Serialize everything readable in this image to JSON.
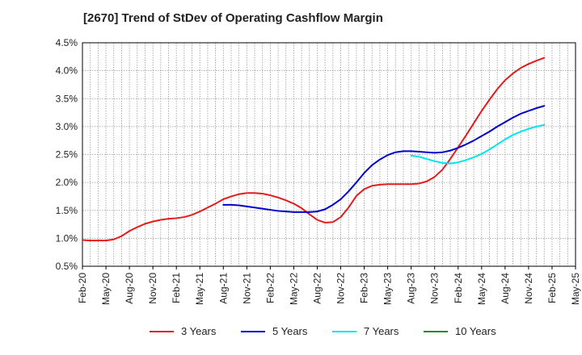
{
  "chart_data": {
    "type": "line",
    "title": "[2670]  Trend of StDev of Operating Cashflow Margin",
    "xlabel": "",
    "ylabel": "",
    "ylim": [
      0.5,
      4.5
    ],
    "yticks": [
      "0.5%",
      "1.0%",
      "1.5%",
      "2.0%",
      "2.5%",
      "3.0%",
      "3.5%",
      "4.0%",
      "4.5%"
    ],
    "ytick_values": [
      0.5,
      1.0,
      1.5,
      2.0,
      2.5,
      3.0,
      3.5,
      4.0,
      4.5
    ],
    "categories": [
      "Feb-20",
      "May-20",
      "Aug-20",
      "Nov-20",
      "Feb-21",
      "May-21",
      "Aug-21",
      "Nov-21",
      "Feb-22",
      "May-22",
      "Aug-22",
      "Nov-22",
      "Feb-23",
      "May-23",
      "Aug-23",
      "Nov-23",
      "Feb-24",
      "May-24",
      "Aug-24",
      "Nov-24",
      "Feb-25",
      "May-25"
    ],
    "grid": true,
    "legend_position": "bottom",
    "series": [
      {
        "name": "3 Years",
        "color": "#e41a1c",
        "points": [
          [
            "Feb-20",
            0.97
          ],
          [
            "Mar-20",
            0.96
          ],
          [
            "Apr-20",
            0.96
          ],
          [
            "May-20",
            0.96
          ],
          [
            "Jun-20",
            0.98
          ],
          [
            "Jul-20",
            1.04
          ],
          [
            "Aug-20",
            1.13
          ],
          [
            "Sep-20",
            1.2
          ],
          [
            "Oct-20",
            1.26
          ],
          [
            "Nov-20",
            1.3
          ],
          [
            "Dec-20",
            1.33
          ],
          [
            "Jan-21",
            1.35
          ],
          [
            "Feb-21",
            1.36
          ],
          [
            "Mar-21",
            1.38
          ],
          [
            "Apr-21",
            1.42
          ],
          [
            "May-21",
            1.48
          ],
          [
            "Jun-21",
            1.55
          ],
          [
            "Jul-21",
            1.62
          ],
          [
            "Aug-21",
            1.7
          ],
          [
            "Sep-21",
            1.75
          ],
          [
            "Oct-21",
            1.79
          ],
          [
            "Nov-21",
            1.81
          ],
          [
            "Dec-21",
            1.81
          ],
          [
            "Jan-22",
            1.8
          ],
          [
            "Feb-22",
            1.77
          ],
          [
            "Mar-22",
            1.73
          ],
          [
            "Apr-22",
            1.68
          ],
          [
            "May-22",
            1.62
          ],
          [
            "Jun-22",
            1.54
          ],
          [
            "Jul-22",
            1.43
          ],
          [
            "Aug-22",
            1.33
          ],
          [
            "Sep-22",
            1.28
          ],
          [
            "Oct-22",
            1.29
          ],
          [
            "Nov-22",
            1.38
          ],
          [
            "Dec-22",
            1.55
          ],
          [
            "Jan-23",
            1.76
          ],
          [
            "Feb-23",
            1.88
          ],
          [
            "Mar-23",
            1.94
          ],
          [
            "Apr-23",
            1.96
          ],
          [
            "May-23",
            1.97
          ],
          [
            "Jun-23",
            1.97
          ],
          [
            "Jul-23",
            1.97
          ],
          [
            "Aug-23",
            1.97
          ],
          [
            "Sep-23",
            1.98
          ],
          [
            "Oct-23",
            2.02
          ],
          [
            "Nov-23",
            2.1
          ],
          [
            "Dec-23",
            2.23
          ],
          [
            "Jan-24",
            2.42
          ],
          [
            "Feb-24",
            2.63
          ],
          [
            "Mar-24",
            2.84
          ],
          [
            "Apr-24",
            3.06
          ],
          [
            "May-24",
            3.28
          ],
          [
            "Jun-24",
            3.48
          ],
          [
            "Jul-24",
            3.67
          ],
          [
            "Aug-24",
            3.83
          ],
          [
            "Sep-24",
            3.95
          ],
          [
            "Oct-24",
            4.05
          ],
          [
            "Nov-24",
            4.12
          ],
          [
            "Dec-24",
            4.18
          ],
          [
            "Jan-25",
            4.23
          ]
        ]
      },
      {
        "name": "5 Years",
        "color": "#0000cc",
        "points": [
          [
            "Aug-21",
            1.6
          ],
          [
            "Sep-21",
            1.6
          ],
          [
            "Oct-21",
            1.59
          ],
          [
            "Nov-21",
            1.57
          ],
          [
            "Dec-21",
            1.55
          ],
          [
            "Jan-22",
            1.53
          ],
          [
            "Feb-22",
            1.51
          ],
          [
            "Mar-22",
            1.49
          ],
          [
            "Apr-22",
            1.48
          ],
          [
            "May-22",
            1.47
          ],
          [
            "Jun-22",
            1.47
          ],
          [
            "Jul-22",
            1.47
          ],
          [
            "Aug-22",
            1.48
          ],
          [
            "Sep-22",
            1.52
          ],
          [
            "Oct-22",
            1.6
          ],
          [
            "Nov-22",
            1.7
          ],
          [
            "Dec-22",
            1.84
          ],
          [
            "Jan-23",
            2.0
          ],
          [
            "Feb-23",
            2.17
          ],
          [
            "Mar-23",
            2.31
          ],
          [
            "Apr-23",
            2.41
          ],
          [
            "May-23",
            2.49
          ],
          [
            "Jun-23",
            2.54
          ],
          [
            "Jul-23",
            2.56
          ],
          [
            "Aug-23",
            2.56
          ],
          [
            "Sep-23",
            2.55
          ],
          [
            "Oct-23",
            2.54
          ],
          [
            "Nov-23",
            2.53
          ],
          [
            "Dec-23",
            2.54
          ],
          [
            "Jan-24",
            2.57
          ],
          [
            "Feb-24",
            2.62
          ],
          [
            "Mar-24",
            2.68
          ],
          [
            "Apr-24",
            2.75
          ],
          [
            "May-24",
            2.83
          ],
          [
            "Jun-24",
            2.91
          ],
          [
            "Jul-24",
            3.0
          ],
          [
            "Aug-24",
            3.08
          ],
          [
            "Sep-24",
            3.16
          ],
          [
            "Oct-24",
            3.23
          ],
          [
            "Nov-24",
            3.28
          ],
          [
            "Dec-24",
            3.33
          ],
          [
            "Jan-25",
            3.37
          ]
        ]
      },
      {
        "name": "7 Years",
        "color": "#00e5ee",
        "points": [
          [
            "Aug-23",
            2.48
          ],
          [
            "Sep-23",
            2.46
          ],
          [
            "Oct-23",
            2.42
          ],
          [
            "Nov-23",
            2.38
          ],
          [
            "Dec-23",
            2.35
          ],
          [
            "Jan-24",
            2.34
          ],
          [
            "Feb-24",
            2.36
          ],
          [
            "Mar-24",
            2.4
          ],
          [
            "Apr-24",
            2.45
          ],
          [
            "May-24",
            2.51
          ],
          [
            "Jun-24",
            2.59
          ],
          [
            "Jul-24",
            2.68
          ],
          [
            "Aug-24",
            2.77
          ],
          [
            "Sep-24",
            2.85
          ],
          [
            "Oct-24",
            2.91
          ],
          [
            "Nov-24",
            2.96
          ],
          [
            "Dec-24",
            3.0
          ],
          [
            "Jan-25",
            3.03
          ]
        ]
      },
      {
        "name": "10 Years",
        "color": "#228b22",
        "points": []
      }
    ]
  }
}
